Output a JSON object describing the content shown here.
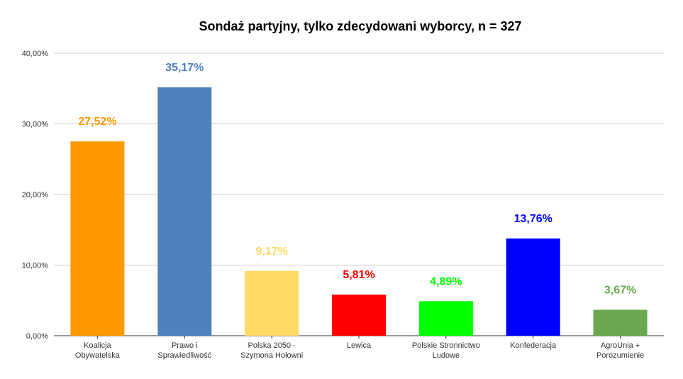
{
  "chart_data": {
    "type": "bar",
    "title": "Sondaż partyjny, tylko zdecydowani wyborcy, n = 327",
    "xlabel": "",
    "ylabel": "",
    "ylim": [
      0,
      40
    ],
    "y_ticks": [
      "0,00%",
      "10,00%",
      "20,00%",
      "30,00%",
      "40,00%"
    ],
    "y_tick_values": [
      0,
      10,
      20,
      30,
      40
    ],
    "grid": true,
    "legend": "none",
    "categories": [
      [
        "Koalicja",
        "Obywatelska"
      ],
      [
        "Prawo i",
        "Sprawiedliwość"
      ],
      [
        "Polska 2050 -",
        "Szymona Hołowni"
      ],
      [
        "Lewica"
      ],
      [
        "Polskie Stronnictwo",
        "Ludowe"
      ],
      [
        "Konfederacja"
      ],
      [
        "AgroUnia +",
        "Porozumienie"
      ]
    ],
    "values": [
      27.52,
      35.17,
      9.17,
      5.81,
      4.89,
      13.76,
      3.67
    ],
    "value_labels": [
      "27,52%",
      "35,17%",
      "9,17%",
      "5,81%",
      "4,89%",
      "13,76%",
      "3,67%"
    ],
    "colors": [
      "#ff9900",
      "#4f81bd",
      "#ffd966",
      "#ff0000",
      "#00ff00",
      "#0000ff",
      "#6aa84f"
    ]
  }
}
